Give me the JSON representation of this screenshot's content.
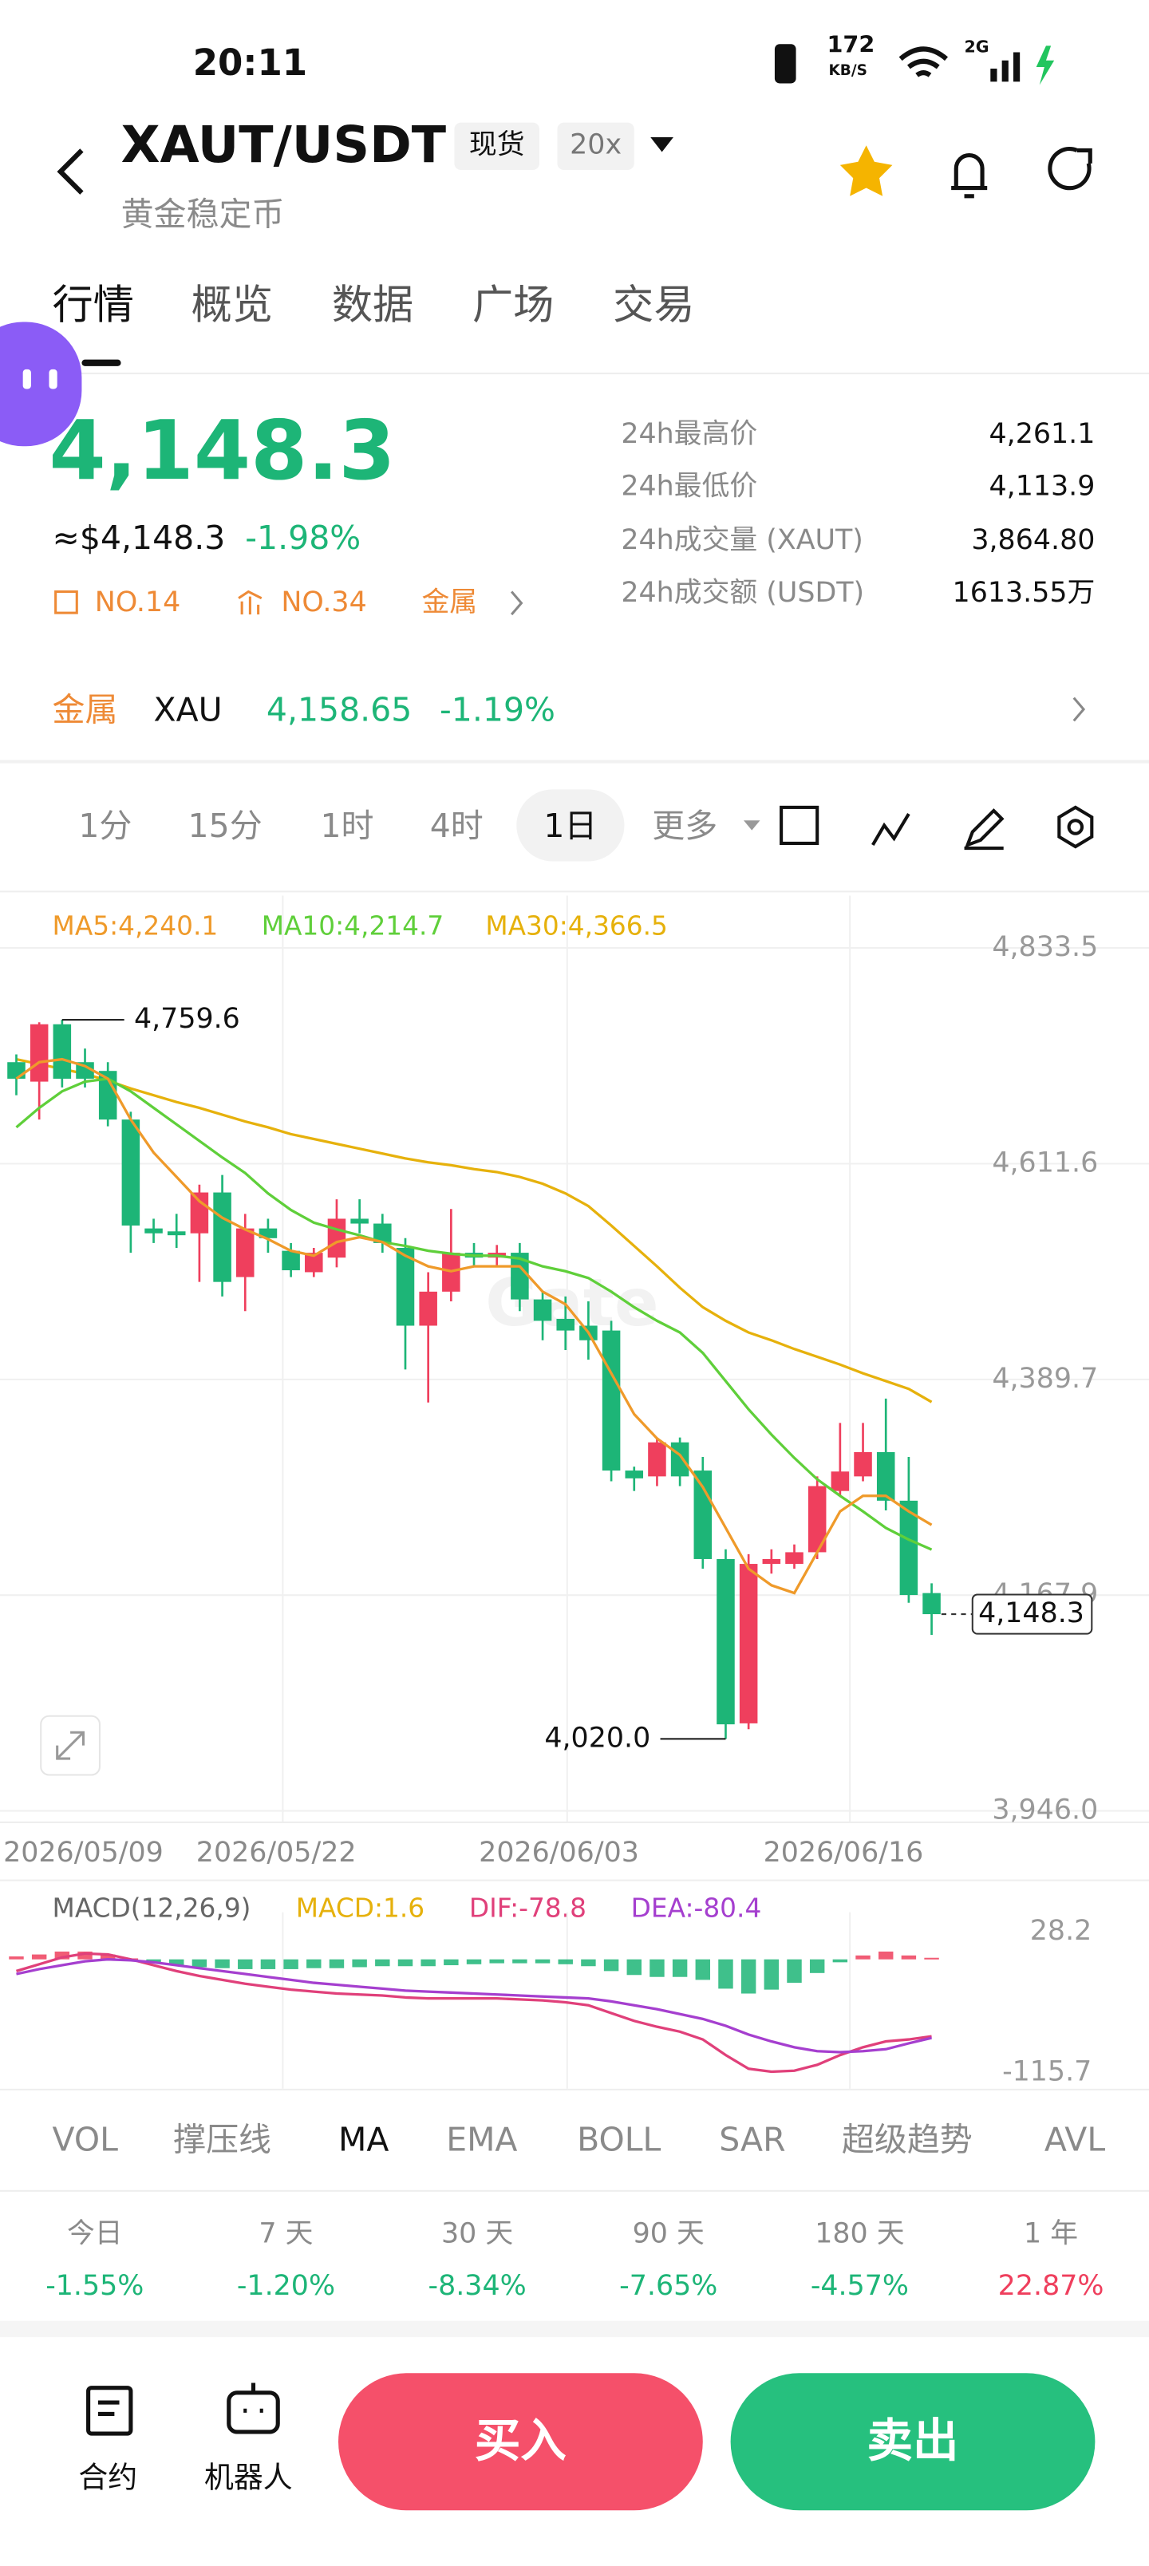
{
  "status": {
    "time": "20:11",
    "speed": "172",
    "speed_unit": "KB/S",
    "network": "2G"
  },
  "header": {
    "pair": "XAUT/USDT",
    "tag": "现货",
    "leverage": "20x",
    "subtitle": "黄金稳定币"
  },
  "tabs": [
    "行情",
    "概览",
    "数据",
    "广场",
    "交易"
  ],
  "price": {
    "last": "4,148.3",
    "approx": "≈$4,148.3",
    "change": "-1.98%",
    "rank1": "NO.14",
    "rank2": "NO.34",
    "sector": "金属"
  },
  "stats": [
    {
      "label": "24h最高价",
      "value": "4,261.1"
    },
    {
      "label": "24h最低价",
      "value": "4,113.9"
    },
    {
      "label": "24h成交量 (XAUT)",
      "value": "3,864.80"
    },
    {
      "label": "24h成交额 (USDT)",
      "value": "1613.55万"
    }
  ],
  "metal": {
    "label": "金属",
    "symbol": "XAU",
    "price": "4,158.65",
    "change": "-1.19%"
  },
  "intervals": [
    "1分",
    "15分",
    "1时",
    "4时",
    "1日",
    "更多"
  ],
  "kline": {
    "watermark": "Gate",
    "ma_labels": [
      "MA5:4,240.1",
      "MA10:4,214.7",
      "MA30:4,366.5"
    ],
    "ylim": [
      3946.0,
      4833.5
    ],
    "yticks": [
      {
        "value": 3946.0,
        "label": "3,946.0"
      },
      {
        "value": 4167.9,
        "label": "4,167.9"
      },
      {
        "value": 4389.7,
        "label": "4,389.7"
      },
      {
        "value": 4611.6,
        "label": "4,611.6"
      },
      {
        "value": 4833.5,
        "label": "4,833.5"
      }
    ],
    "high": {
      "value": 4759.6,
      "label": "4,759.6"
    },
    "low": {
      "value": 4020.0,
      "label": "4,020.0"
    },
    "current": {
      "value": 4148.3,
      "label": "4,148.3"
    },
    "dates": [
      "2026/05/09",
      "2026/05/22",
      "2026/06/03",
      "2026/06/16"
    ],
    "candles": [
      [
        4716,
        4724,
        4682,
        4699
      ],
      [
        4696,
        4757,
        4657,
        4755
      ],
      [
        4755,
        4759.6,
        4690,
        4699
      ],
      [
        4716,
        4730,
        4690,
        4699
      ],
      [
        4707,
        4716,
        4650,
        4657
      ],
      [
        4657,
        4665,
        4520,
        4548
      ],
      [
        4545,
        4555,
        4530,
        4540
      ],
      [
        4542,
        4560,
        4525,
        4538
      ],
      [
        4540,
        4590,
        4490,
        4582
      ],
      [
        4582,
        4600,
        4475,
        4490
      ],
      [
        4495,
        4560,
        4460,
        4545
      ],
      [
        4545,
        4555,
        4520,
        4535
      ],
      [
        4522,
        4530,
        4495,
        4502
      ],
      [
        4500,
        4525,
        4495,
        4520
      ],
      [
        4515,
        4575,
        4505,
        4555
      ],
      [
        4555,
        4575,
        4540,
        4550
      ],
      [
        4550,
        4560,
        4520,
        4530
      ],
      [
        4525,
        4535,
        4400,
        4445
      ],
      [
        4445,
        4500,
        4366,
        4480
      ],
      [
        4480,
        4565,
        4470,
        4520
      ],
      [
        4520,
        4530,
        4505,
        4515
      ],
      [
        4515,
        4528,
        4505,
        4520
      ],
      [
        4520,
        4530,
        4460,
        4472
      ],
      [
        4472,
        4480,
        4430,
        4450
      ],
      [
        4452,
        4475,
        4420,
        4440
      ],
      [
        4445,
        4470,
        4410,
        4430
      ],
      [
        4440,
        4450,
        4285,
        4296
      ],
      [
        4296,
        4300,
        4275,
        4288
      ],
      [
        4290,
        4330,
        4280,
        4325
      ],
      [
        4325,
        4330,
        4280,
        4290
      ],
      [
        4296,
        4310,
        4195,
        4205
      ],
      [
        4205,
        4215,
        4020.0,
        4035
      ],
      [
        4036,
        4210,
        4030,
        4200
      ],
      [
        4200,
        4215,
        4190,
        4205
      ],
      [
        4200,
        4220,
        4195,
        4212
      ],
      [
        4212,
        4290,
        4205,
        4280
      ],
      [
        4275,
        4345,
        4270,
        4295
      ],
      [
        4290,
        4345,
        4285,
        4315
      ],
      [
        4315,
        4370,
        4255,
        4265
      ],
      [
        4265,
        4310,
        4160,
        4168
      ],
      [
        4170,
        4180,
        4127,
        4148.3
      ]
    ],
    "ma5": [
      4699,
      4716,
      4719,
      4712,
      4699,
      4657,
      4623,
      4598,
      4573,
      4556,
      4544,
      4534,
      4522,
      4517,
      4531,
      4536,
      4531,
      4517,
      4506,
      4501,
      4506,
      4506,
      4506,
      4480,
      4467,
      4438,
      4396,
      4354,
      4329,
      4312,
      4279,
      4237,
      4195,
      4178,
      4170,
      4212,
      4254,
      4270,
      4270,
      4254,
      4240.1
    ],
    "ma10": [
      4649,
      4669,
      4686,
      4696,
      4699,
      4686,
      4669,
      4652,
      4635,
      4618,
      4602,
      4581,
      4564,
      4551,
      4544,
      4538,
      4531,
      4527,
      4522,
      4519,
      4517,
      4517,
      4514,
      4506,
      4501,
      4494,
      4480,
      4464,
      4450,
      4438,
      4417,
      4388,
      4359,
      4333,
      4309,
      4287,
      4270,
      4254,
      4237,
      4225,
      4214.7
    ],
    "ma30": [
      4719,
      4714,
      4709,
      4704,
      4697,
      4689,
      4682,
      4675,
      4669,
      4662,
      4655,
      4649,
      4642,
      4637,
      4632,
      4627,
      4622,
      4617,
      4613,
      4610,
      4606,
      4603,
      4598,
      4591,
      4581,
      4568,
      4548,
      4527,
      4506,
      4484,
      4464,
      4450,
      4438,
      4430,
      4421,
      4413,
      4405,
      4396,
      4388,
      4380,
      4366.5
    ]
  },
  "macd": {
    "labels": [
      "MACD(12,26,9)",
      "MACD:1.6",
      "DIF:-78.8",
      "DEA:-80.4"
    ],
    "ylim": [
      -115.7,
      28.2
    ],
    "yticks": [
      -115.7,
      28.2
    ],
    "hist": [
      3,
      5,
      8,
      8,
      5,
      1,
      -3,
      -6,
      -8,
      -9,
      -10,
      -10,
      -10,
      -9,
      -9,
      -8,
      -7,
      -7,
      -7,
      -6,
      -5,
      -4,
      -4,
      -4,
      -5,
      -7,
      -12,
      -16,
      -18,
      -18,
      -21,
      -30,
      -35,
      -31,
      -24,
      -14,
      -3,
      4,
      8,
      4,
      1.6
    ],
    "dif": [
      -12,
      -5,
      2,
      6,
      5,
      0,
      -6,
      -12,
      -17,
      -21,
      -25,
      -28,
      -31,
      -33,
      -35,
      -36,
      -37,
      -39,
      -40,
      -40,
      -40,
      -40,
      -41,
      -42,
      -44,
      -47,
      -55,
      -63,
      -69,
      -74,
      -82,
      -98,
      -112,
      -115,
      -114,
      -108,
      -98,
      -90,
      -84,
      -82,
      -78.8
    ],
    "dea": [
      -15,
      -10,
      -6,
      -2,
      0,
      -1,
      -3,
      -6,
      -9,
      -12,
      -15,
      -18,
      -21,
      -24,
      -26,
      -28,
      -30,
      -32,
      -33,
      -34,
      -35,
      -36,
      -37,
      -38,
      -39,
      -40,
      -43,
      -47,
      -51,
      -56,
      -61,
      -68,
      -77,
      -84,
      -90,
      -94,
      -95,
      -94,
      -92,
      -86,
      -80.4
    ]
  },
  "indicators": [
    "VOL",
    "撑压线",
    "MA",
    "EMA",
    "BOLL",
    "SAR",
    "超级趋势",
    "AVL"
  ],
  "periods": [
    {
      "label": "今日",
      "change": "-1.55%"
    },
    {
      "label": "7 天",
      "change": "-1.20%"
    },
    {
      "label": "30 天",
      "change": "-8.34%"
    },
    {
      "label": "90 天",
      "change": "-7.65%"
    },
    {
      "label": "180 天",
      "change": "-4.57%"
    },
    {
      "label": "1 年",
      "change": "22.87%"
    }
  ],
  "bottom": {
    "contract": "合约",
    "robot": "机器人",
    "buy": "买入",
    "sell": "卖出"
  }
}
